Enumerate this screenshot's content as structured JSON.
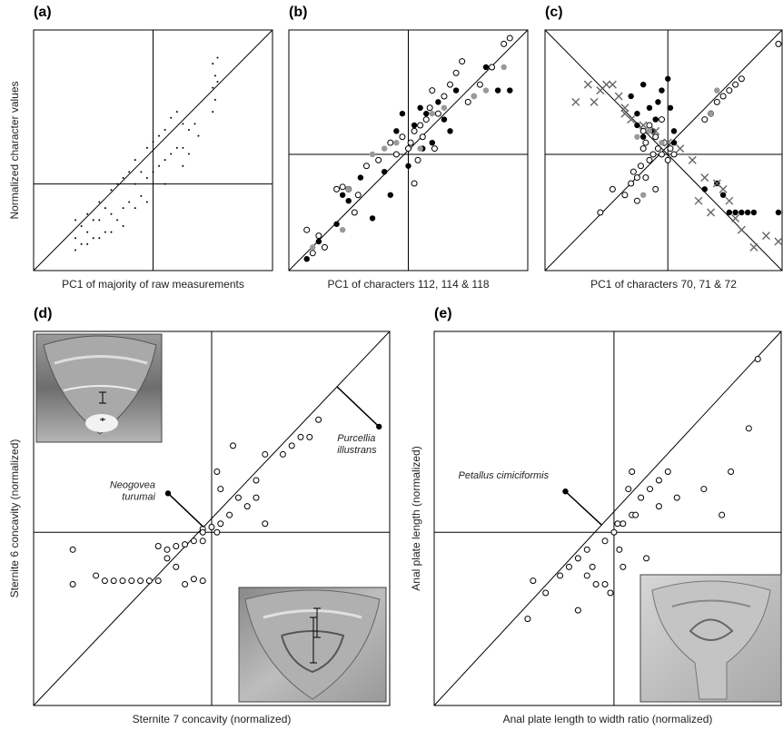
{
  "chart_data": [
    {
      "type": "scatter",
      "panel_label": "(a)",
      "x_label": "PC1 of majority of raw measurements",
      "y_label": "Normalized character values",
      "xlim": [
        -1,
        1
      ],
      "ylim": [
        -0.72,
        1.28
      ],
      "diagonal": true,
      "series": [
        {
          "marker": "dot",
          "color": "#000000",
          "x": [
            -0.65,
            -0.65,
            -0.65,
            -0.6,
            -0.6,
            -0.55,
            -0.55,
            -0.55,
            -0.5,
            -0.5,
            -0.45,
            -0.45,
            -0.45,
            -0.4,
            -0.4,
            -0.35,
            -0.35,
            -0.35,
            -0.3,
            -0.3,
            -0.25,
            -0.25,
            -0.25,
            -0.2,
            -0.2,
            -0.15,
            -0.15,
            -0.15,
            -0.1,
            -0.1,
            -0.05,
            -0.05,
            -0.05,
            0,
            0,
            0.05,
            0.05,
            0.1,
            0.1,
            0.1,
            0.15,
            0.15,
            0.2,
            0.2,
            0.25,
            0.25,
            0.25,
            0.3,
            0.3,
            0.5,
            0.5,
            0.5,
            0.52,
            0.52,
            0.54,
            0.54,
            0.35,
            0.38
          ],
          "values": [
            -0.3,
            -0.45,
            -0.55,
            -0.35,
            -0.5,
            -0.25,
            -0.4,
            -0.5,
            -0.3,
            -0.45,
            -0.15,
            -0.3,
            -0.45,
            -0.2,
            -0.4,
            -0.05,
            -0.25,
            -0.4,
            0.0,
            -0.3,
            0.05,
            -0.2,
            -0.35,
            0.1,
            -0.15,
            0.2,
            0.0,
            -0.2,
            0.1,
            -0.1,
            0.3,
            0.05,
            -0.15,
            0.35,
            0.1,
            0.4,
            0.15,
            0.45,
            0.2,
            0.0,
            0.55,
            0.25,
            0.6,
            0.3,
            0.5,
            0.3,
            0.15,
            0.45,
            0.25,
            1.0,
            0.8,
            0.6,
            0.9,
            0.7,
            1.05,
            0.85,
            0.5,
            0.4
          ]
        }
      ]
    },
    {
      "type": "scatter",
      "panel_label": "(b)",
      "x_label": "PC1 of characters 112, 114 & 118",
      "xlim": [
        -1,
        1
      ],
      "ylim": [
        -1,
        1.07
      ],
      "diagonal": true,
      "series": [
        {
          "marker": "open",
          "color": "#000000",
          "x": [
            -0.85,
            -0.8,
            -0.75,
            -0.6,
            -0.55,
            -0.5,
            -0.42,
            -0.35,
            -0.25,
            -0.15,
            -0.1,
            -0.05,
            0,
            0.02,
            0.05,
            0.08,
            0.1,
            0.12,
            0.15,
            0.18,
            0.2,
            0.25,
            0.3,
            0.35,
            0.4,
            0.5,
            0.6,
            0.7,
            0.8,
            0.85,
            -0.7,
            -0.45,
            0.22,
            0.05,
            0.45
          ],
          "values": [
            -0.65,
            -0.85,
            -0.7,
            -0.3,
            -0.28,
            -0.3,
            -0.35,
            -0.1,
            -0.05,
            0.1,
            0.0,
            0.15,
            0.05,
            0.1,
            0.2,
            -0.05,
            0.25,
            0.15,
            0.3,
            0.4,
            0.55,
            0.35,
            0.5,
            0.6,
            0.7,
            0.45,
            0.6,
            0.75,
            0.95,
            1.0,
            -0.8,
            -0.5,
            0.05,
            -0.25,
            0.8
          ]
        },
        {
          "marker": "filled",
          "color": "#000000",
          "x": [
            -0.85,
            -0.75,
            -0.6,
            -0.5,
            -0.4,
            -0.3,
            -0.2,
            -0.1,
            -0.05,
            0.05,
            0.1,
            0.15,
            0.2,
            0.25,
            0.3,
            0.4,
            0.55,
            0.65,
            0.75,
            0.85,
            0.0,
            -0.15,
            0.12,
            0.35,
            -0.55
          ],
          "values": [
            -0.9,
            -0.75,
            -0.6,
            -0.4,
            -0.2,
            -0.55,
            -0.15,
            0.2,
            0.35,
            0.25,
            0.4,
            0.35,
            0.1,
            0.45,
            0.3,
            0.55,
            0.5,
            0.75,
            0.55,
            0.55,
            -0.1,
            -0.35,
            0.05,
            0.2,
            -0.35
          ]
        },
        {
          "marker": "filled",
          "color": "#999999",
          "x": [
            -0.8,
            -0.55,
            -0.5,
            -0.3,
            -0.2,
            -0.1,
            0.1,
            0.2,
            0.3,
            0.55,
            0.65,
            0.8
          ],
          "values": [
            -0.8,
            -0.65,
            -0.3,
            0.0,
            0.05,
            0.1,
            0.05,
            0.35,
            0.4,
            0.5,
            0.55,
            0.75
          ]
        }
      ]
    },
    {
      "type": "scatter",
      "panel_label": "(c)",
      "x_label": "PC1 of characters 70, 71 & 72",
      "xlim": [
        -1,
        0.93
      ],
      "ylim": [
        -1,
        1.07
      ],
      "diagonal": true,
      "anti_diagonal": true,
      "series": [
        {
          "marker": "open",
          "color": "#000000",
          "x": [
            -0.55,
            -0.45,
            -0.35,
            -0.3,
            -0.28,
            -0.25,
            -0.22,
            -0.2,
            -0.18,
            -0.15,
            -0.12,
            -0.1,
            -0.08,
            -0.05,
            -0.03,
            0,
            0.02,
            0.05,
            -0.2,
            -0.15,
            -0.1,
            0.3,
            0.35,
            0.4,
            0.45,
            0.5,
            0.55,
            0.6,
            0.9,
            -0.25,
            -0.18,
            -0.05
          ],
          "values": [
            -0.5,
            -0.3,
            -0.35,
            -0.25,
            -0.15,
            -0.2,
            -0.1,
            0.05,
            0.1,
            -0.05,
            0.0,
            0.15,
            0.05,
            0.0,
            0.1,
            -0.05,
            0.05,
            0.0,
            0.2,
            0.25,
            -0.3,
            0.3,
            0.35,
            0.45,
            0.5,
            0.55,
            0.6,
            0.65,
            0.95,
            -0.4,
            -0.2,
            0.3
          ]
        },
        {
          "marker": "filled",
          "color": "#000000",
          "x": [
            -0.3,
            -0.25,
            -0.2,
            -0.15,
            -0.1,
            -0.05,
            0.0,
            0.05,
            -0.2,
            -0.12,
            -0.08,
            0.05,
            0.3,
            0.4,
            0.45,
            0.5,
            0.55,
            0.6,
            0.65,
            0.7,
            0.9,
            -0.25,
            0.02
          ],
          "values": [
            0.5,
            0.35,
            0.6,
            0.4,
            0.3,
            0.55,
            0.65,
            0.2,
            0.15,
            0.2,
            0.45,
            0.1,
            -0.3,
            -0.25,
            -0.35,
            -0.5,
            -0.5,
            -0.5,
            -0.5,
            -0.5,
            -0.5,
            0.25,
            0.4
          ]
        },
        {
          "marker": "filled",
          "color": "#999999",
          "x": [
            -0.25,
            -0.15,
            -0.05,
            -0.2,
            0.35,
            0.4
          ],
          "values": [
            0.15,
            0.2,
            0.1,
            -0.35,
            0.35,
            0.55
          ]
        },
        {
          "marker": "cross",
          "color": "#666666",
          "x": [
            -0.75,
            -0.65,
            -0.55,
            -0.5,
            -0.45,
            -0.4,
            -0.35,
            -0.3,
            -0.2,
            -0.1,
            0.0,
            0.1,
            0.2,
            0.3,
            0.4,
            0.45,
            0.5,
            0.55,
            0.6,
            0.7,
            0.8,
            0.9,
            -0.6,
            -0.35,
            0.25,
            0.35
          ],
          "values": [
            0.45,
            0.6,
            0.55,
            0.6,
            0.6,
            0.5,
            0.4,
            0.3,
            0.25,
            0.2,
            0.1,
            0.05,
            -0.05,
            -0.2,
            -0.25,
            -0.3,
            -0.4,
            -0.55,
            -0.65,
            -0.8,
            -0.7,
            -0.75,
            0.45,
            0.35,
            -0.4,
            -0.5
          ]
        }
      ]
    },
    {
      "type": "scatter",
      "panel_label": "(d)",
      "x_label": "Sternite 7 concavity (normalized)",
      "y_label": "Sternite 6 concavity (normalized)",
      "xlim": [
        -1,
        1
      ],
      "ylim": [
        -1,
        1.16
      ],
      "diagonal": true,
      "series": [
        {
          "marker": "open",
          "color": "#000000",
          "x": [
            -0.78,
            -0.78,
            -0.65,
            -0.6,
            -0.55,
            -0.5,
            -0.45,
            -0.4,
            -0.35,
            -0.3,
            -0.25,
            -0.2,
            -0.15,
            -0.1,
            -0.05,
            -0.3,
            -0.25,
            -0.2,
            -0.15,
            -0.1,
            -0.05,
            0.0,
            0.03,
            0.05,
            0.1,
            0.15,
            0.25,
            0.3,
            0.4,
            0.5,
            0.55,
            0.6,
            -0.05,
            0.03,
            0.05,
            0.2,
            0.25,
            0.3,
            0.12,
            0.45,
            -0.05
          ],
          "values": [
            -0.1,
            -0.3,
            -0.25,
            -0.28,
            -0.28,
            -0.28,
            -0.28,
            -0.28,
            -0.28,
            -0.28,
            -0.15,
            -0.2,
            -0.3,
            -0.27,
            -0.28,
            -0.08,
            -0.1,
            -0.08,
            -0.07,
            -0.05,
            0.02,
            0.03,
            0.0,
            0.05,
            0.1,
            0.2,
            0.3,
            0.45,
            0.45,
            0.55,
            0.55,
            0.65,
            0.0,
            0.35,
            0.25,
            0.15,
            0.2,
            0.05,
            0.5,
            0.5,
            -0.05
          ]
        },
        {
          "marker": "filled",
          "color": "#000000",
          "leader": true,
          "x": [
            -0.245,
            0.94
          ],
          "values": [
            0.225,
            0.61
          ],
          "point_labels": [
            [
              "Neogovea",
              "turumai"
            ],
            [
              "Purcellia",
              "illustrans"
            ]
          ]
        }
      ]
    },
    {
      "type": "scatter",
      "panel_label": "(e)",
      "x_label": "Anal plate length to width ratio (normalized)",
      "y_label": "Anal plate length (normalized)",
      "xlim": [
        -1,
        0.93
      ],
      "ylim": [
        -1,
        1.16
      ],
      "diagonal": true,
      "series": [
        {
          "marker": "open",
          "color": "#000000",
          "x": [
            -0.48,
            -0.45,
            -0.38,
            -0.3,
            -0.25,
            -0.2,
            -0.15,
            -0.1,
            -0.05,
            0.0,
            0.05,
            0.1,
            0.15,
            0.2,
            0.25,
            0.3,
            0.35,
            0.5,
            0.6,
            0.75,
            0.8,
            -0.2,
            -0.12,
            -0.05,
            0.02,
            0.08,
            0.12,
            0.18,
            -0.02,
            0.1,
            0.25,
            0.65,
            -0.15,
            0.05,
            0.03
          ],
          "values": [
            -0.5,
            -0.28,
            -0.35,
            -0.25,
            -0.2,
            -0.45,
            -0.1,
            -0.3,
            -0.05,
            0.0,
            0.05,
            0.1,
            0.2,
            0.25,
            0.3,
            0.35,
            0.2,
            0.25,
            0.1,
            0.6,
            1.0,
            -0.15,
            -0.2,
            -0.3,
            0.05,
            0.25,
            0.1,
            -0.15,
            -0.35,
            0.35,
            0.15,
            0.35,
            -0.25,
            -0.2,
            -0.1
          ]
        },
        {
          "marker": "filled",
          "color": "#000000",
          "leader": true,
          "x": [
            -0.27
          ],
          "values": [
            0.236
          ],
          "point_labels": [
            [
              "Petallus cimiciformis"
            ]
          ]
        }
      ]
    }
  ]
}
